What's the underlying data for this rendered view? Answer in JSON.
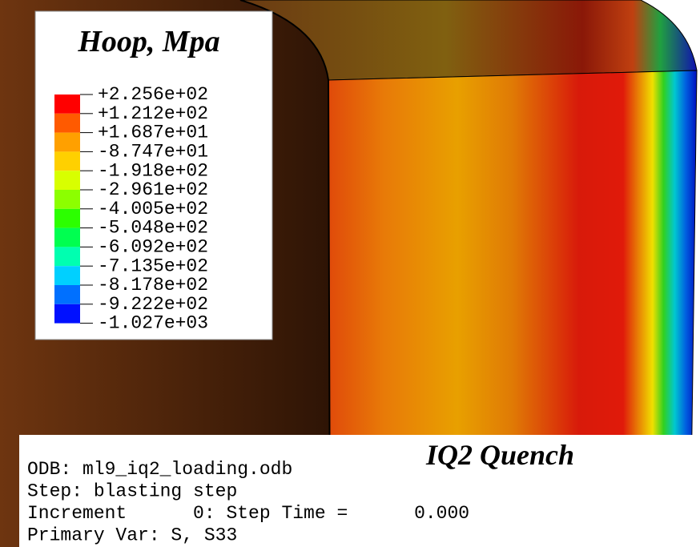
{
  "legend": {
    "title": "Hoop, Mpa",
    "labels": [
      "+2.256e+02",
      "+1.212e+02",
      "+1.687e+01",
      "-8.747e+01",
      "-1.918e+02",
      "-2.961e+02",
      "-4.005e+02",
      "-5.048e+02",
      "-6.092e+02",
      "-7.135e+02",
      "-8.178e+02",
      "-9.222e+02",
      "-1.027e+03"
    ]
  },
  "annotation": "IQ2 Quench",
  "info": {
    "lines": [
      "ODB: ml9_iq2_loading.odb",
      "Step: blasting step",
      "Increment      0: Step Time =      0.000",
      "Primary Var: S, S33"
    ]
  }
}
